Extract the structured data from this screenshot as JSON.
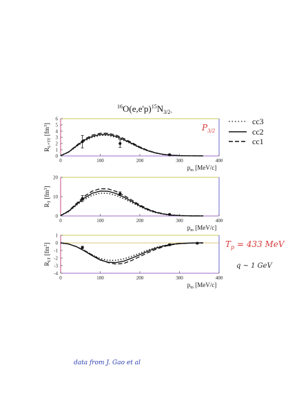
{
  "title": {
    "base1_sup": "16",
    "base1": "O(e,e'p)",
    "base2_sup": "15",
    "base2": "N",
    "base2_sub": "3/2-"
  },
  "legend": [
    {
      "label": "cc3",
      "style": "dotted"
    },
    {
      "label": "cc2",
      "style": "solid"
    },
    {
      "label": "cc1",
      "style": "dashed"
    }
  ],
  "handwritten": {
    "state_main": "P",
    "state_sub": "3/2",
    "energy": "T",
    "energy_sub": "p",
    "energy_rest": " = 433 MeV",
    "q": "q ~ 1 GeV",
    "source": "data from  J. Gao et al"
  },
  "colors": {
    "handwriting_red": "#d63a3a",
    "handwriting_blue": "#2b3fb0",
    "handwriting_black": "#222222",
    "frame_top": "#caca5a",
    "frame_left": "#c94a8a",
    "frame_bottom": "#9c6bc8",
    "frame_right": "#6a6ad0"
  },
  "chart_data": [
    {
      "type": "line",
      "ylabel": "R_L+TT [fm^3]",
      "xlabel": "p_m [MeV/c]",
      "xlim": [
        0,
        400
      ],
      "ylim": [
        0,
        6
      ],
      "xticks": [
        0,
        100,
        200,
        300,
        400
      ],
      "yticks": [
        0,
        1,
        2,
        3,
        4,
        5,
        6
      ],
      "series": [
        {
          "name": "cc3",
          "x": [
            0,
            20,
            40,
            60,
            80,
            100,
            120,
            140,
            160,
            180,
            200,
            220,
            240,
            260,
            280,
            300,
            330,
            360
          ],
          "y": [
            0.05,
            0.6,
            1.5,
            2.4,
            3.0,
            3.3,
            3.3,
            3.0,
            2.5,
            1.9,
            1.3,
            0.8,
            0.45,
            0.22,
            0.1,
            0.05,
            0.02,
            0.01
          ]
        },
        {
          "name": "cc2",
          "x": [
            0,
            20,
            40,
            60,
            80,
            100,
            120,
            140,
            160,
            180,
            200,
            220,
            240,
            260,
            280,
            300,
            330,
            360
          ],
          "y": [
            0.05,
            0.62,
            1.6,
            2.55,
            3.15,
            3.45,
            3.45,
            3.15,
            2.6,
            2.0,
            1.35,
            0.85,
            0.48,
            0.24,
            0.11,
            0.05,
            0.02,
            0.01
          ]
        },
        {
          "name": "cc1",
          "x": [
            0,
            20,
            40,
            60,
            80,
            100,
            120,
            140,
            160,
            180,
            200,
            220,
            240,
            260,
            280,
            300,
            330,
            360
          ],
          "y": [
            0.05,
            0.65,
            1.7,
            2.7,
            3.35,
            3.65,
            3.65,
            3.35,
            2.8,
            2.15,
            1.45,
            0.9,
            0.5,
            0.25,
            0.12,
            0.06,
            0.02,
            0.01
          ]
        }
      ],
      "points": [
        {
          "x": 55,
          "y": 2.3,
          "err": 1.0
        },
        {
          "x": 150,
          "y": 2.0,
          "err": 0.6
        },
        {
          "x": 275,
          "y": 0.2,
          "err": 0.1
        }
      ]
    },
    {
      "type": "line",
      "ylabel": "R_T [fm^3]",
      "xlabel": "p_m [MeV/c]",
      "xlim": [
        0,
        400
      ],
      "ylim": [
        0,
        20
      ],
      "xticks": [
        0,
        100,
        200,
        300,
        400
      ],
      "yticks": [
        0,
        10,
        20
      ],
      "series": [
        {
          "name": "cc3",
          "x": [
            0,
            20,
            40,
            60,
            80,
            100,
            120,
            140,
            160,
            180,
            200,
            220,
            240,
            260,
            280,
            300,
            330,
            360
          ],
          "y": [
            0.2,
            2.2,
            5.5,
            8.5,
            10.8,
            11.8,
            11.7,
            10.6,
            8.9,
            6.9,
            4.8,
            3.0,
            1.7,
            0.9,
            0.4,
            0.2,
            0.05,
            0.02
          ]
        },
        {
          "name": "cc2",
          "x": [
            0,
            20,
            40,
            60,
            80,
            100,
            120,
            140,
            160,
            180,
            200,
            220,
            240,
            260,
            280,
            300,
            330,
            360
          ],
          "y": [
            0.2,
            2.4,
            6.0,
            9.3,
            11.8,
            12.9,
            12.8,
            11.6,
            9.7,
            7.5,
            5.2,
            3.3,
            1.9,
            1.0,
            0.45,
            0.2,
            0.05,
            0.02
          ]
        },
        {
          "name": "cc1",
          "x": [
            0,
            20,
            40,
            60,
            80,
            100,
            120,
            140,
            160,
            180,
            200,
            220,
            240,
            260,
            280,
            300,
            330,
            360
          ],
          "y": [
            0.2,
            2.6,
            6.5,
            10.2,
            12.9,
            14.1,
            14.0,
            12.7,
            10.6,
            8.2,
            5.7,
            3.6,
            2.1,
            1.1,
            0.5,
            0.22,
            0.06,
            0.02
          ]
        }
      ],
      "points": [
        {
          "x": 55,
          "y": 9.0,
          "err": 1.5
        },
        {
          "x": 150,
          "y": 11.5,
          "err": 1.0
        },
        {
          "x": 275,
          "y": 0.8,
          "err": 0.3
        }
      ]
    },
    {
      "type": "line",
      "ylabel": "R_LT [fm^3]",
      "xlabel": "p_m [MeV/c]",
      "xlim": [
        0,
        400
      ],
      "ylim": [
        -4,
        1
      ],
      "xticks": [
        0,
        100,
        200,
        300,
        400
      ],
      "yticks": [
        -4,
        -3,
        -2,
        -1,
        0,
        1
      ],
      "series": [
        {
          "name": "cc3",
          "x": [
            0,
            20,
            40,
            60,
            80,
            100,
            120,
            140,
            160,
            180,
            200,
            220,
            240,
            260,
            280,
            300,
            330,
            360
          ],
          "y": [
            0,
            -0.15,
            -0.5,
            -1.0,
            -1.6,
            -2.05,
            -2.3,
            -2.3,
            -2.1,
            -1.75,
            -1.35,
            -0.95,
            -0.6,
            -0.35,
            -0.18,
            -0.08,
            -0.02,
            0
          ]
        },
        {
          "name": "cc2",
          "x": [
            0,
            20,
            40,
            60,
            80,
            100,
            120,
            140,
            160,
            180,
            200,
            220,
            240,
            260,
            280,
            300,
            330,
            360
          ],
          "y": [
            0,
            -0.15,
            -0.5,
            -1.05,
            -1.7,
            -2.25,
            -2.55,
            -2.6,
            -2.4,
            -2.0,
            -1.55,
            -1.1,
            -0.7,
            -0.4,
            -0.2,
            -0.09,
            -0.02,
            0
          ]
        },
        {
          "name": "cc1",
          "x": [
            0,
            20,
            40,
            60,
            80,
            100,
            120,
            140,
            160,
            180,
            200,
            220,
            240,
            260,
            280,
            300,
            330,
            360
          ],
          "y": [
            0,
            -0.15,
            -0.5,
            -1.0,
            -1.6,
            -2.2,
            -2.6,
            -2.8,
            -2.7,
            -2.3,
            -1.8,
            -1.3,
            -0.85,
            -0.5,
            -0.25,
            -0.1,
            -0.03,
            0
          ]
        }
      ],
      "points": [
        {
          "x": 55,
          "y": -0.6,
          "err": 0.15
        },
        {
          "x": 275,
          "y": -0.25,
          "err": 0.1
        },
        {
          "x": 345,
          "y": -0.05,
          "err": 0.05
        }
      ]
    }
  ]
}
